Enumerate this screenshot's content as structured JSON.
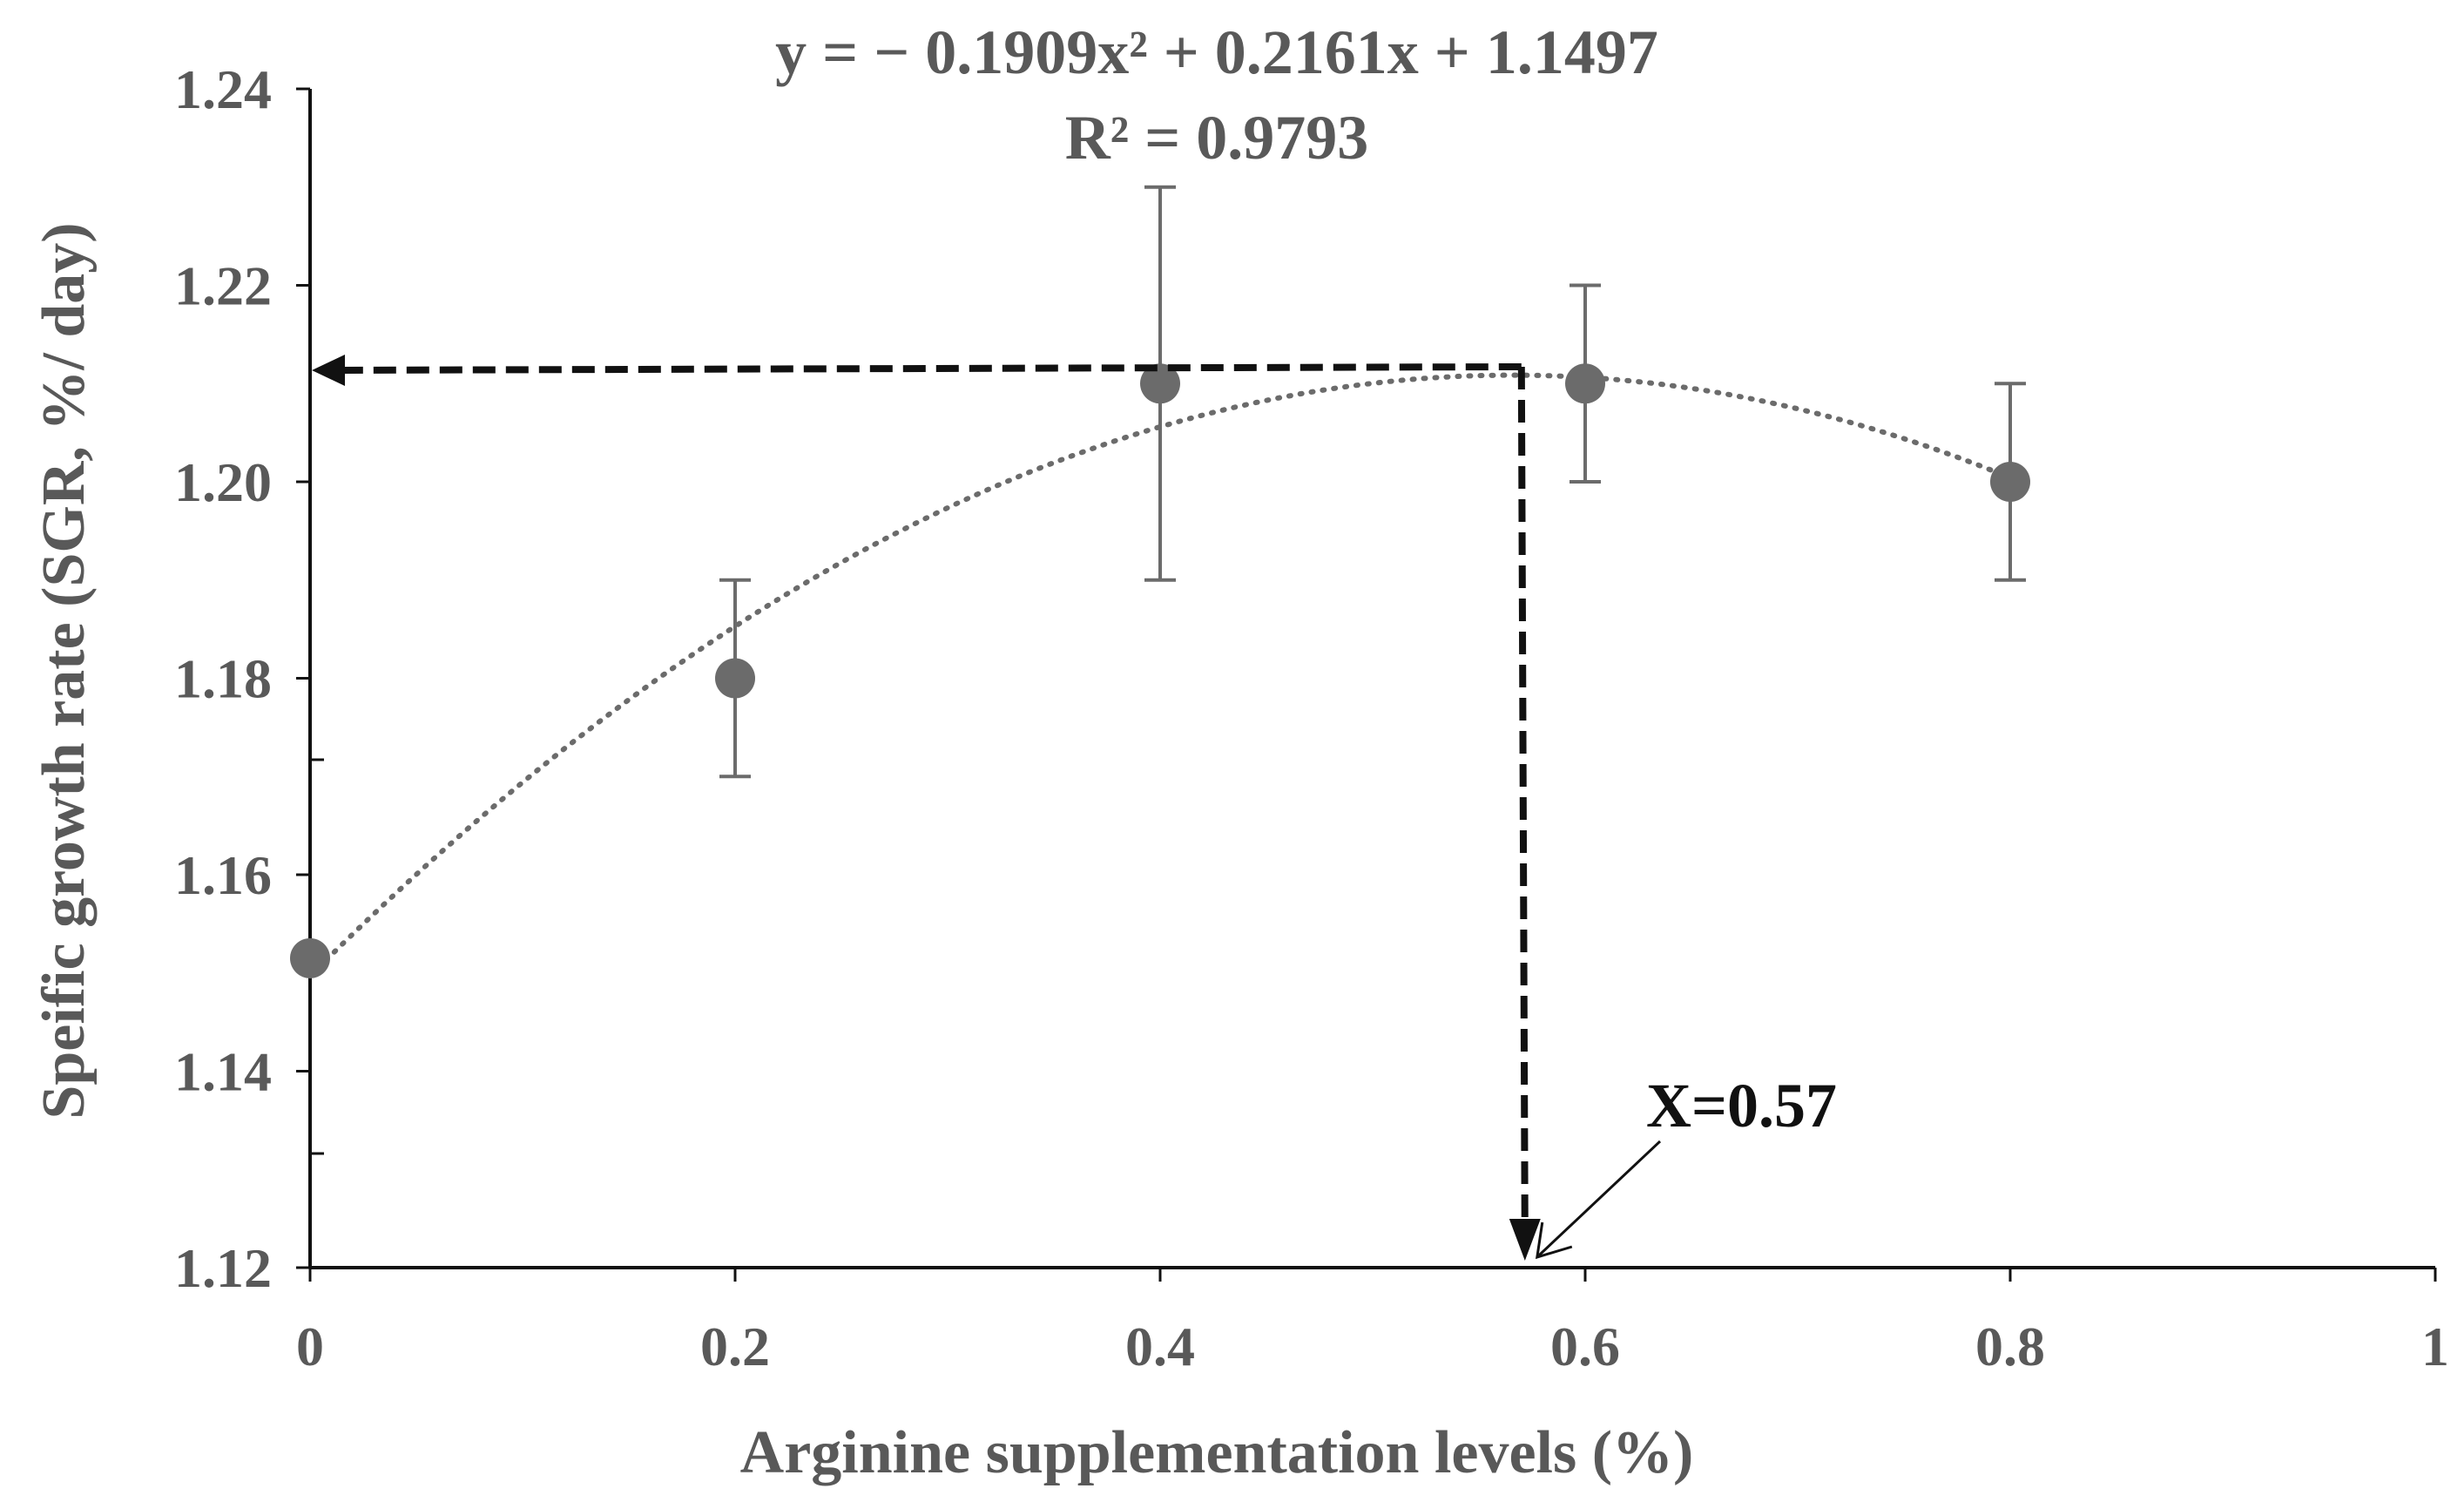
{
  "chart_data": {
    "type": "scatter",
    "xlabel": "Arginine supplementation levels (%)",
    "ylabel": "Speific growth rate (SGR, %/ day)",
    "xlim": [
      0,
      1
    ],
    "ylim": [
      1.12,
      1.24
    ],
    "x_ticks": [
      "0",
      "0.2",
      "0.4",
      "0.6",
      "0.8",
      "1"
    ],
    "y_ticks": [
      "1.12",
      "1.14",
      "1.16",
      "1.18",
      "1.20",
      "1.22",
      "1.24"
    ],
    "grid": false,
    "series": [
      {
        "x": [
          0,
          0.2,
          0.4,
          0.6,
          0.8
        ],
        "y": [
          1.1515,
          1.18,
          1.21,
          1.21,
          1.2
        ],
        "error": [
          0,
          0.01,
          0.02,
          0.01,
          0.01
        ]
      }
    ],
    "trendline": {
      "type": "polynomial",
      "coefficients": [
        -0.1909,
        0.2161,
        1.1497
      ],
      "equation": "y = − 0.1909x² + 0.2161x + 1.1497",
      "r2": "R² = 0.9793",
      "x_range": [
        0,
        0.8
      ]
    },
    "optimum": {
      "x": 0.57,
      "y": 1.211,
      "label": "X=0.57"
    },
    "colors": {
      "marker": "#6b6b6b",
      "text": "#595959",
      "axis": "#111111",
      "arrow": "#111111"
    }
  }
}
